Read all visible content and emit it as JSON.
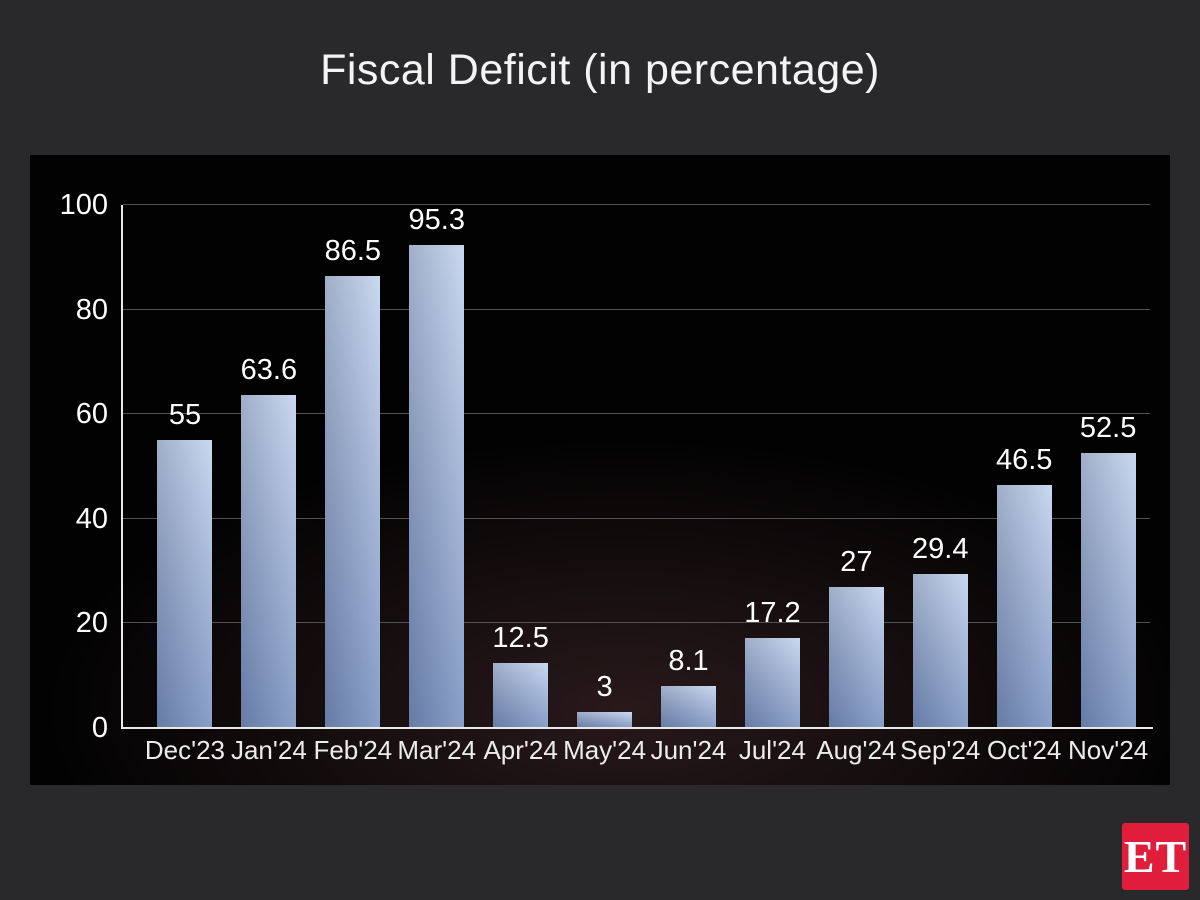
{
  "title": "Fiscal Deficit (in percentage)",
  "logo": {
    "text": "ET",
    "bg_color": "#e01e3c"
  },
  "colors": {
    "page_bg": "#29292b",
    "panel_bg": "#020202",
    "gridline": "#515151",
    "axis": "#e9e9e9",
    "text": "#f4f4f4",
    "bar_top": "#c4d4ee",
    "bar_bottom": "#7b94c1",
    "logo_red": "#e01e3c"
  },
  "chart_data": {
    "type": "bar",
    "title": "Fiscal Deficit (in percentage)",
    "categories": [
      "Dec'23",
      "Jan'24",
      "Feb'24",
      "Mar'24",
      "Apr'24",
      "May'24",
      "Jun'24",
      "Jul'24",
      "Aug'24",
      "Sep'24",
      "Oct'24",
      "Nov'24"
    ],
    "values": [
      55,
      63.6,
      86.5,
      95.3,
      12.5,
      3,
      8.1,
      17.2,
      27,
      29.4,
      46.5,
      52.5
    ],
    "xlabel": "",
    "ylabel": "",
    "ylim": [
      0,
      100
    ],
    "yticks": [
      0,
      20,
      40,
      60,
      80,
      100
    ],
    "grid": true,
    "legend": "none",
    "data_labels": true
  }
}
